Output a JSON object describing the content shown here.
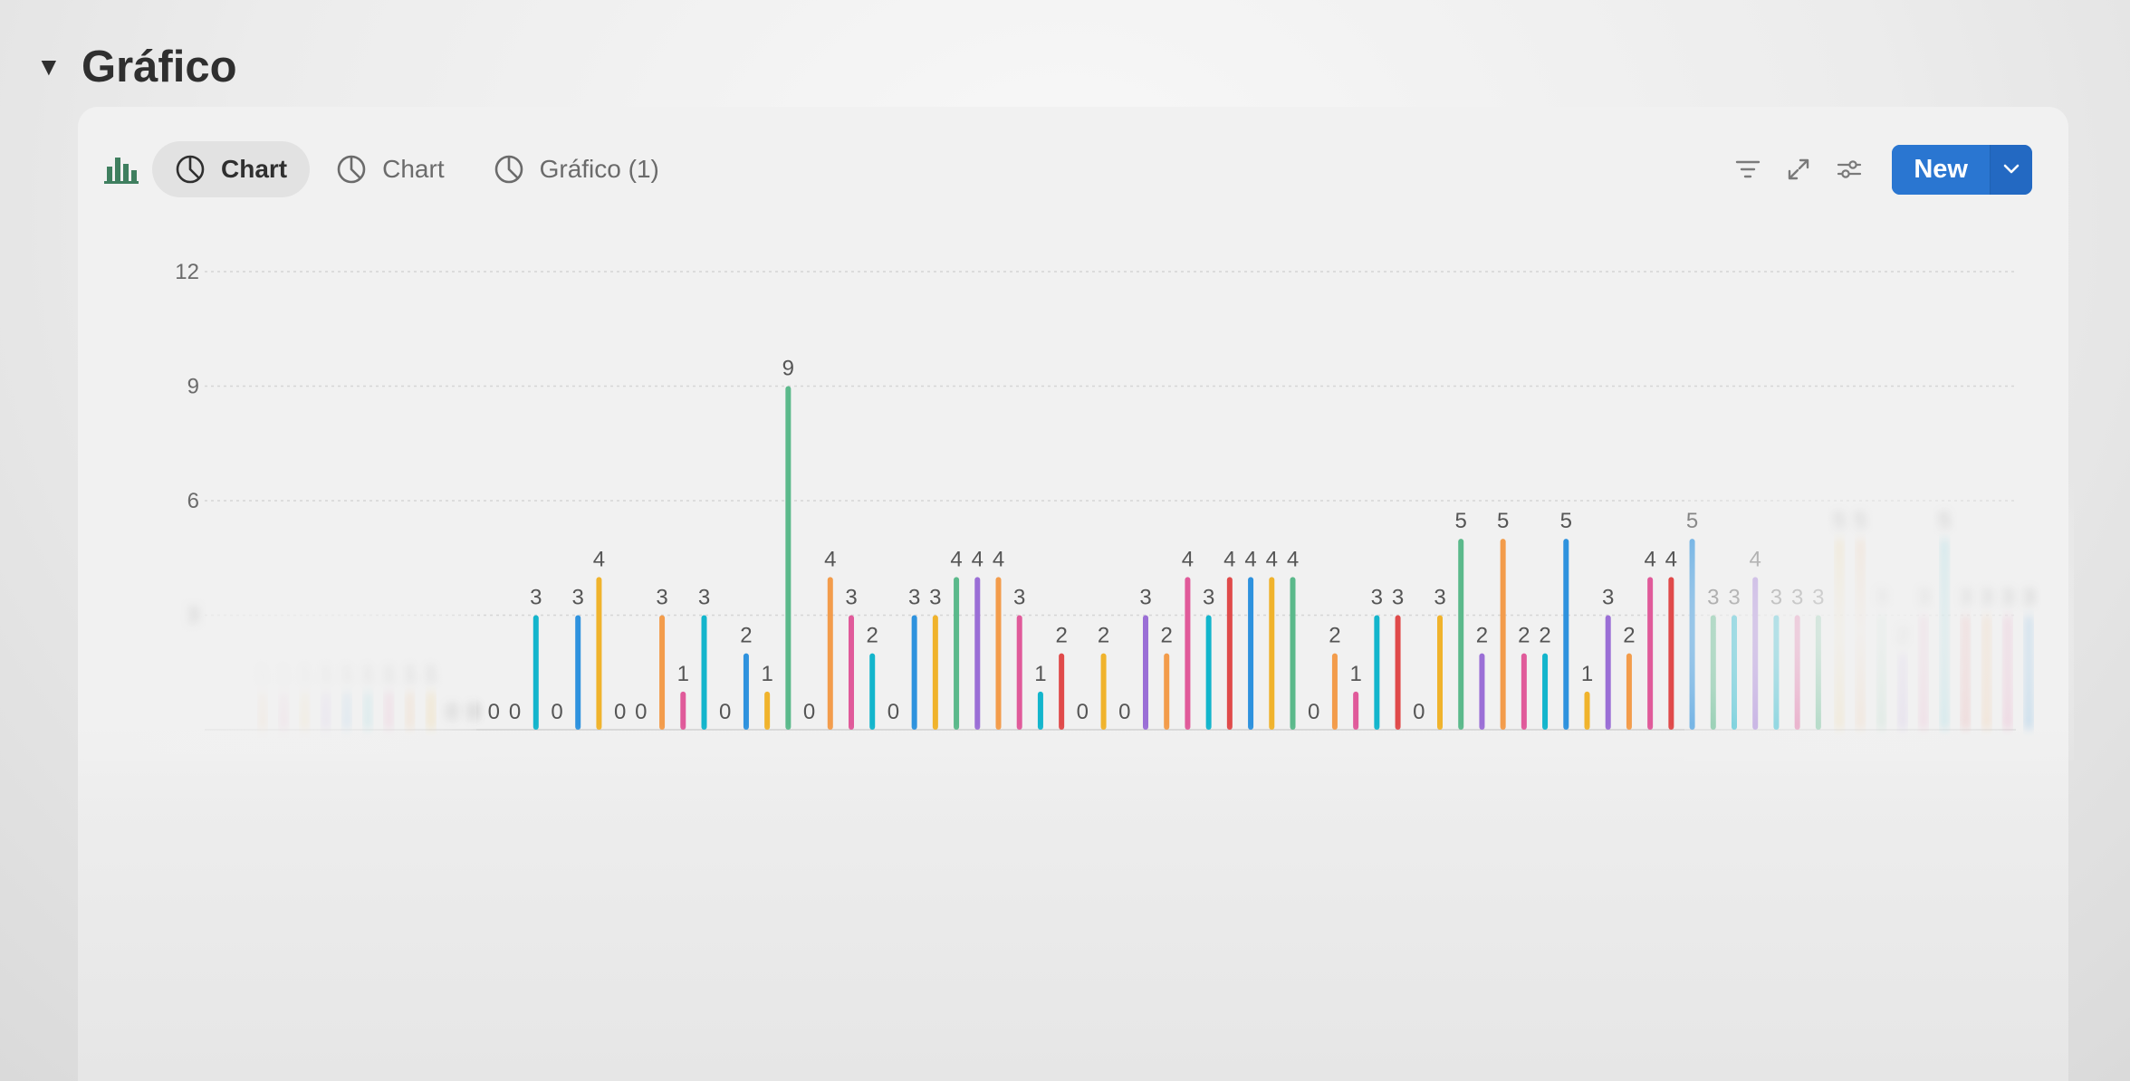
{
  "section": {
    "title": "Gráfico"
  },
  "tabs": [
    {
      "label": "Chart",
      "active": true
    },
    {
      "label": "Chart",
      "active": false
    },
    {
      "label": "Gráfico (1)",
      "active": false
    }
  ],
  "actions": {
    "new_label": "New"
  },
  "colors": {
    "accent": "#2a76d1",
    "db_icon": "#3f7f5f"
  },
  "chart_data": {
    "type": "bar",
    "ylim": [
      0,
      12
    ],
    "yticks": [
      "12",
      "9",
      "6",
      "3"
    ],
    "grid": true,
    "data_labels": true,
    "legend": "none",
    "values": [
      1,
      1,
      1,
      1,
      1,
      1,
      1,
      1,
      1,
      0,
      0,
      0,
      0,
      3,
      0,
      3,
      4,
      0,
      0,
      3,
      1,
      3,
      0,
      2,
      1,
      9,
      0,
      4,
      3,
      2,
      0,
      3,
      3,
      4,
      4,
      4,
      3,
      1,
      2,
      0,
      2,
      0,
      3,
      2,
      4,
      3,
      4,
      4,
      4,
      4,
      0,
      2,
      1,
      3,
      3,
      0,
      3,
      5,
      2,
      5,
      2,
      2,
      5,
      1,
      3,
      2,
      4,
      4,
      5,
      3,
      3,
      4,
      3,
      3,
      3,
      5,
      5,
      3,
      2,
      3,
      5,
      3,
      3,
      3,
      3
    ],
    "colors": [
      "#f39c4b",
      "#e05a9a",
      "#f0b32c",
      "#9b6fd6",
      "#2e92de",
      "#13b5cc",
      "#e05a9a",
      "#f39c4b",
      "#f0b32c",
      "#9b6fd6",
      "#2e92de",
      "#13b5cc",
      "#9b6fd6",
      "#13b5cc",
      "#9b6fd6",
      "#2e92de",
      "#f0b32c",
      "#9b6fd6",
      "#e05a9a",
      "#f39c4b",
      "#e05a9a",
      "#13b5cc",
      "#9b6fd6",
      "#2e92de",
      "#f0b32c",
      "#5bb98b",
      "#f39c4b",
      "#f39c4b",
      "#e05a9a",
      "#13b5cc",
      "#9b6fd6",
      "#2e92de",
      "#f0b32c",
      "#5bb98b",
      "#9b6fd6",
      "#f39c4b",
      "#e05a9a",
      "#13b5cc",
      "#e04a4a",
      "#f39c4b",
      "#f0b32c",
      "#e05a9a",
      "#9b6fd6",
      "#f39c4b",
      "#e05a9a",
      "#13b5cc",
      "#e04a4a",
      "#2e92de",
      "#f0b32c",
      "#5bb98b",
      "#9b6fd6",
      "#f39c4b",
      "#e05a9a",
      "#13b5cc",
      "#e04a4a",
      "#f39c4b",
      "#f0b32c",
      "#5bb98b",
      "#9b6fd6",
      "#f39c4b",
      "#e05a9a",
      "#13b5cc",
      "#2e92de",
      "#f0b32c",
      "#9b6fd6",
      "#f39c4b",
      "#e05a9a",
      "#e04a4a",
      "#2e92de",
      "#5bb98b",
      "#13b5cc",
      "#9b6fd6",
      "#13b5cc",
      "#e05a9a",
      "#5bb98b",
      "#f0b32c",
      "#f39c4b",
      "#5bb98b",
      "#9b6fd6",
      "#e05a9a",
      "#13b5cc",
      "#e04a4a",
      "#f39c4b",
      "#e05a9a",
      "#2e92de"
    ]
  }
}
